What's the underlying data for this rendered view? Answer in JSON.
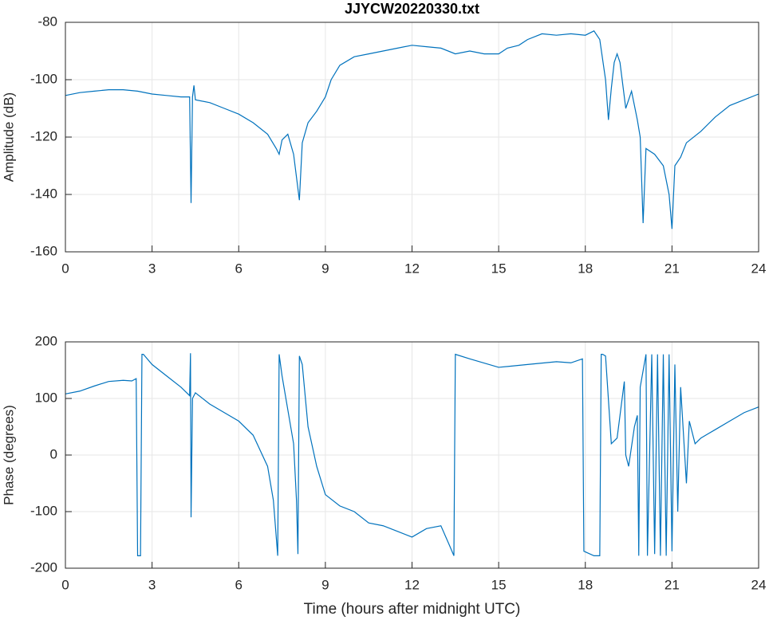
{
  "chart_data": [
    {
      "type": "line",
      "title": "JJYCW20220330.txt",
      "ylabel": "Amplitude (dB)",
      "xlim": [
        0,
        24
      ],
      "xticks": [
        0,
        3,
        6,
        9,
        12,
        15,
        18,
        21,
        24
      ],
      "ylim": [
        -160,
        -80
      ],
      "yticks": [
        -160,
        -140,
        -120,
        -100,
        -80
      ],
      "grid": true,
      "series": [
        {
          "name": "Amplitude",
          "color": "#0072bd",
          "x": [
            0,
            0.5,
            1,
            1.5,
            2,
            2.5,
            3,
            3.5,
            4,
            4.3,
            4.35,
            4.4,
            4.45,
            4.5,
            5,
            5.5,
            6,
            6.5,
            7,
            7.3,
            7.4,
            7.5,
            7.7,
            7.9,
            8.0,
            8.1,
            8.2,
            8.4,
            8.7,
            9.0,
            9.2,
            9.5,
            10,
            10.5,
            11,
            11.5,
            12,
            12.5,
            13,
            13.5,
            14,
            14.5,
            15,
            15.3,
            15.7,
            16,
            16.5,
            17,
            17.5,
            18,
            18.3,
            18.5,
            18.7,
            18.8,
            18.9,
            19.0,
            19.1,
            19.2,
            19.4,
            19.6,
            19.8,
            19.9,
            20.0,
            20.1,
            20.4,
            20.7,
            20.9,
            21.0,
            21.1,
            21.3,
            21.5,
            22,
            22.5,
            23,
            23.5,
            24
          ],
          "values": [
            -105.5,
            -104.5,
            -104,
            -103.5,
            -103.5,
            -104,
            -105,
            -105.5,
            -106,
            -106,
            -143,
            -106,
            -102,
            -107,
            -108,
            -110,
            -112,
            -115,
            -119,
            -124,
            -126,
            -121,
            -119,
            -126,
            -134,
            -142,
            -122,
            -115,
            -111,
            -106,
            -100,
            -95,
            -92,
            -91,
            -90,
            -89,
            -88,
            -88.5,
            -89,
            -91,
            -90,
            -91,
            -91,
            -89,
            -88,
            -86,
            -84,
            -84.5,
            -84,
            -84.5,
            -83,
            -86,
            -100,
            -114,
            -103,
            -94,
            -91,
            -94,
            -110,
            -104,
            -114,
            -120,
            -150,
            -124,
            -126,
            -130,
            -140,
            -152,
            -130,
            -127,
            -122,
            -118,
            -113,
            -109,
            -107,
            -105
          ]
        }
      ]
    },
    {
      "type": "line",
      "ylabel": "Phase (degrees)",
      "xlabel": "Time (hours after midnight UTC)",
      "xlim": [
        0,
        24
      ],
      "xticks": [
        0,
        3,
        6,
        9,
        12,
        15,
        18,
        21,
        24
      ],
      "ylim": [
        -200,
        200
      ],
      "yticks": [
        -200,
        -100,
        0,
        100,
        200
      ],
      "grid": true,
      "series": [
        {
          "name": "Phase",
          "color": "#0072bd",
          "x": [
            0,
            0.5,
            1,
            1.5,
            2,
            2.3,
            2.45,
            2.5,
            2.6,
            2.65,
            2.7,
            2.75,
            3,
            3.5,
            4,
            4.3,
            4.33,
            4.35,
            4.4,
            4.5,
            5,
            5.5,
            6,
            6.5,
            7,
            7.2,
            7.35,
            7.4,
            7.5,
            7.7,
            7.9,
            8.0,
            8.05,
            8.1,
            8.2,
            8.4,
            8.7,
            9,
            9.5,
            10,
            10.5,
            11,
            11.5,
            12,
            12.5,
            13,
            13.3,
            13.45,
            13.5,
            14,
            15,
            16,
            17,
            17.5,
            17.9,
            17.95,
            18.3,
            18.5,
            18.55,
            18.6,
            18.7,
            18.9,
            19.1,
            19.2,
            19.35,
            19.4,
            19.5,
            19.7,
            19.8,
            19.85,
            19.9,
            20.1,
            20.15,
            20.3,
            20.4,
            20.5,
            20.6,
            20.7,
            20.8,
            20.9,
            21.0,
            21.1,
            21.2,
            21.3,
            21.5,
            21.6,
            21.8,
            22,
            22.5,
            23,
            23.5,
            24
          ],
          "values": [
            108,
            113,
            122,
            130,
            132,
            131,
            135,
            -178,
            -178,
            178,
            178,
            175,
            160,
            140,
            120,
            105,
            180,
            -110,
            100,
            110,
            90,
            75,
            60,
            35,
            -20,
            -80,
            -178,
            178,
            140,
            80,
            20,
            -80,
            -175,
            175,
            160,
            50,
            -20,
            -70,
            -90,
            -100,
            -120,
            -125,
            -135,
            -145,
            -130,
            -125,
            -160,
            -178,
            178,
            170,
            155,
            160,
            165,
            163,
            170,
            -170,
            -178,
            -178,
            178,
            178,
            175,
            20,
            30,
            70,
            130,
            0,
            -20,
            50,
            70,
            -178,
            120,
            178,
            -178,
            178,
            -175,
            178,
            -178,
            178,
            -178,
            178,
            -170,
            160,
            -100,
            120,
            -50,
            60,
            20,
            30,
            45,
            60,
            75,
            85
          ]
        }
      ]
    }
  ]
}
